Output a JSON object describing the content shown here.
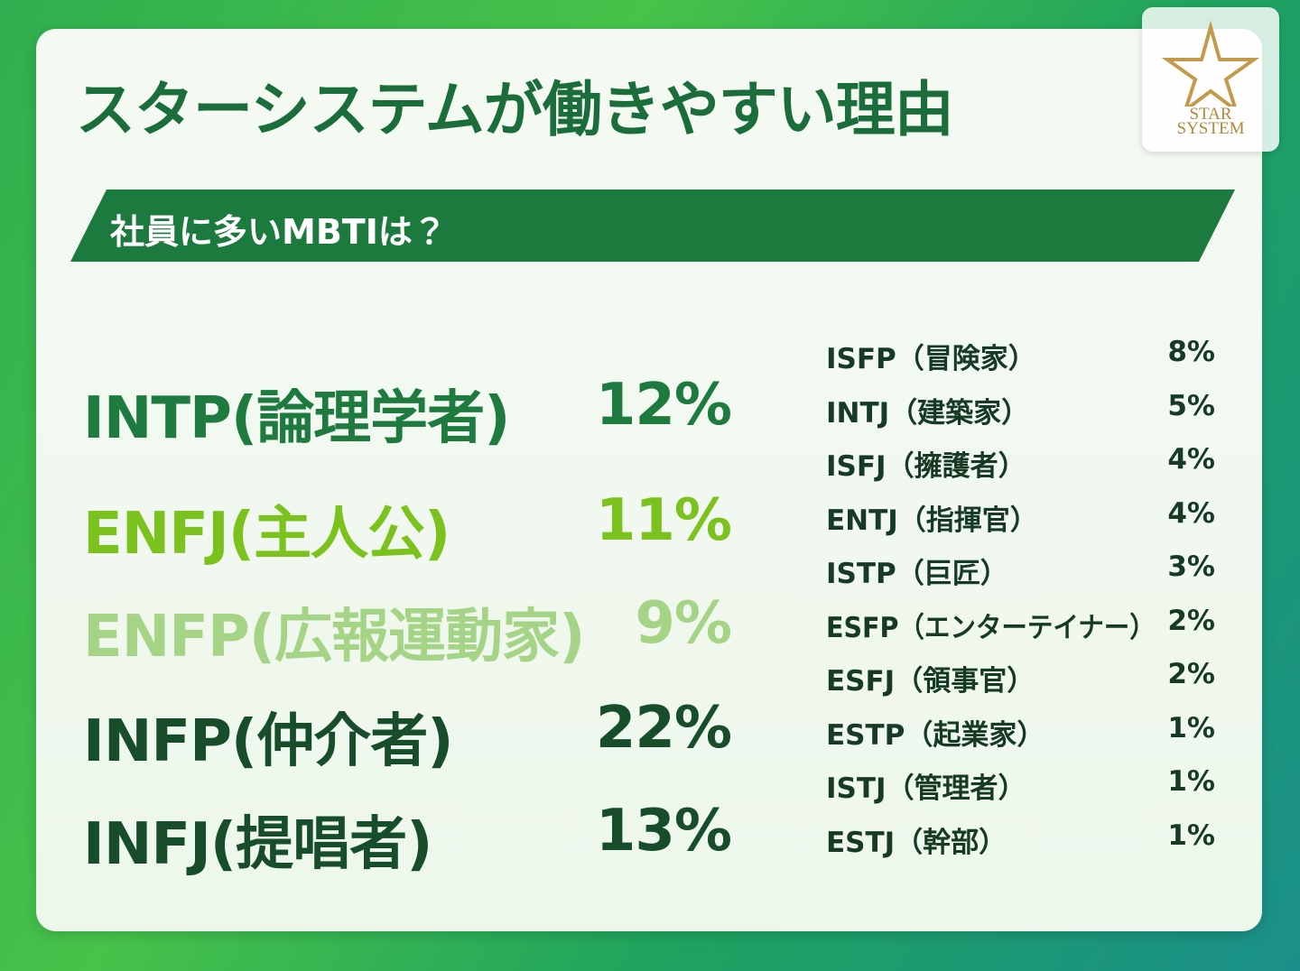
{
  "header": {
    "title": "スターシステムが働きやすい理由",
    "subtitle": "社員に多いMBTIは？"
  },
  "logo": {
    "line1": "STAR",
    "line2": "SYSTEM"
  },
  "main_list": [
    {
      "label": "INTP(論理学者)",
      "value": "12%"
    },
    {
      "label": "ENFJ(主人公)",
      "value": "11%"
    },
    {
      "label": "ENFP(広報運動家)",
      "value": "9%"
    },
    {
      "label": "INFP(仲介者)",
      "value": "22%"
    },
    {
      "label": "INFJ(提唱者)",
      "value": "13%"
    }
  ],
  "side_list": [
    {
      "label": "ISFP（冒険家）",
      "value": "8%"
    },
    {
      "label": "INTJ（建築家）",
      "value": "5%"
    },
    {
      "label": "ISFJ（擁護者）",
      "value": "4%"
    },
    {
      "label": "ENTJ（指揮官）",
      "value": "4%"
    },
    {
      "label": "ISTP（巨匠）",
      "value": "3%"
    },
    {
      "label": "ESFP（エンターテイナー）",
      "value": "2%"
    },
    {
      "label": "ESFJ（領事官）",
      "value": "2%"
    },
    {
      "label": "ESTP（起業家）",
      "value": "1%"
    },
    {
      "label": "ISTJ（管理者）",
      "value": "1%"
    },
    {
      "label": "ESTJ（幹部）",
      "value": "1%"
    }
  ]
}
